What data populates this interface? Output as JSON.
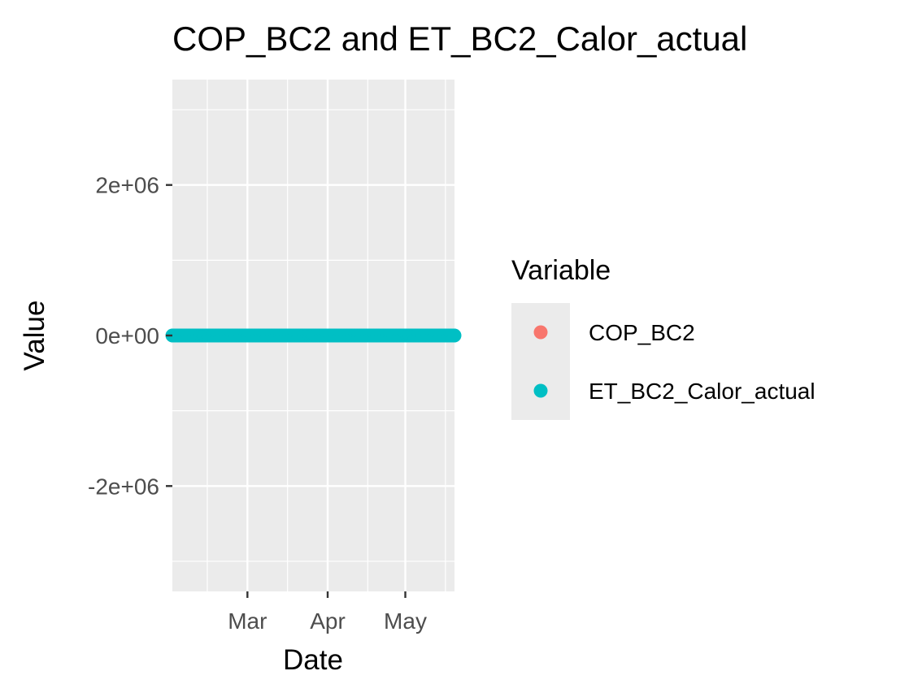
{
  "chart_data": {
    "type": "scatter",
    "title": "COP_BC2 and ET_BC2_Calor_actual",
    "xlabel": "Date",
    "ylabel": "Value",
    "x_axis": {
      "kind": "date",
      "range": [
        "2024-02-01",
        "2024-05-20"
      ],
      "ticks": [
        {
          "date": "2024-03-01",
          "label": "Mar"
        },
        {
          "date": "2024-04-01",
          "label": "Apr"
        },
        {
          "date": "2024-05-01",
          "label": "May"
        }
      ]
    },
    "y_axis": {
      "range": [
        -3400000,
        3400000
      ],
      "ticks": [
        {
          "value": 2000000,
          "label": "2e+06"
        },
        {
          "value": 0,
          "label": "0e+00"
        },
        {
          "value": -2000000,
          "label": "-2e+06"
        }
      ]
    },
    "grid": true,
    "legend": {
      "title": "Variable",
      "position": "right",
      "entries": [
        {
          "label": "COP_BC2",
          "color": "#F8766D"
        },
        {
          "label": "ET_BC2_Calor_actual",
          "color": "#00BFC4"
        }
      ]
    },
    "series": [
      {
        "name": "ET_BC2_Calor_actual",
        "color": "#00BFC4",
        "x_start": "2024-02-01",
        "x_end": "2024-05-20",
        "y": 0
      }
    ],
    "colors": {
      "panel_background": "#EBEBEB",
      "grid_line": "#FFFFFF",
      "tick_text": "#4D4D4D",
      "tick_mark": "#333333"
    }
  }
}
